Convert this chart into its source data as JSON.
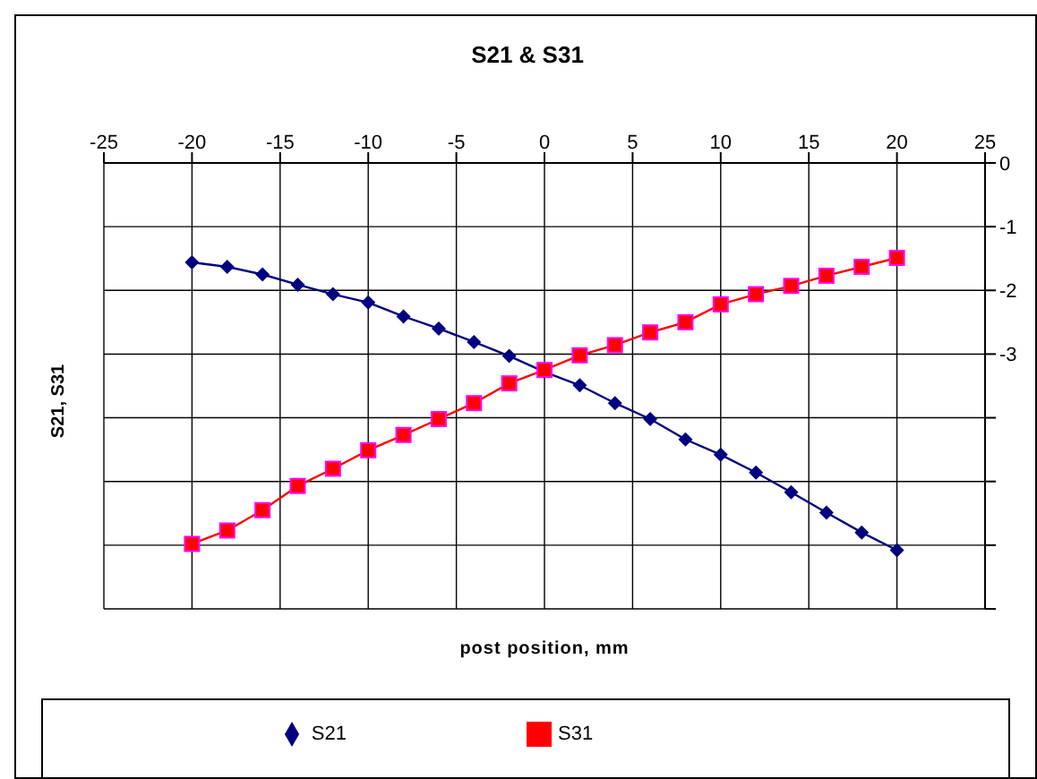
{
  "chart_data": {
    "type": "line",
    "title": "S21 & S31",
    "xlabel": "post position, mm",
    "ylabel": "S21, S31",
    "x": [
      -20,
      -18,
      -16,
      -14,
      -12,
      -10,
      -8,
      -6,
      -4,
      -2,
      0,
      2,
      4,
      6,
      8,
      10,
      12,
      14,
      16,
      18,
      20
    ],
    "series": [
      {
        "name": "S21",
        "color": "#000080",
        "marker": "diamond",
        "values": [
          -1.56,
          -1.63,
          -1.75,
          -1.91,
          -2.06,
          -2.19,
          -2.41,
          -2.6,
          -2.81,
          -3.03,
          -3.28,
          -3.49,
          -3.77,
          -4.02,
          -4.34,
          -4.58,
          -4.86,
          -5.17,
          -5.49,
          -5.8,
          -6.08
        ]
      },
      {
        "name": "S31",
        "color": "#ff0000",
        "marker": "square",
        "values": [
          -5.98,
          -5.77,
          -5.45,
          -5.07,
          -4.8,
          -4.51,
          -4.27,
          -4.02,
          -3.77,
          -3.46,
          -3.25,
          -3.02,
          -2.86,
          -2.66,
          -2.5,
          -2.22,
          -2.06,
          -1.93,
          -1.77,
          -1.63,
          -1.49
        ]
      }
    ],
    "xlim": [
      -25,
      25
    ],
    "xticks": [
      -25,
      -20,
      -15,
      -10,
      -5,
      0,
      5,
      10,
      15,
      20,
      25
    ],
    "ylim": [
      -7,
      0
    ],
    "yticks": [
      0,
      -1,
      -2,
      -3,
      {
        "value": -4,
        "label": null
      },
      {
        "value": -5,
        "label": null
      },
      {
        "value": -6,
        "label": null
      },
      {
        "value": -7,
        "label": null
      }
    ],
    "grid": true,
    "legend": "bottom",
    "line_style": "solid"
  }
}
